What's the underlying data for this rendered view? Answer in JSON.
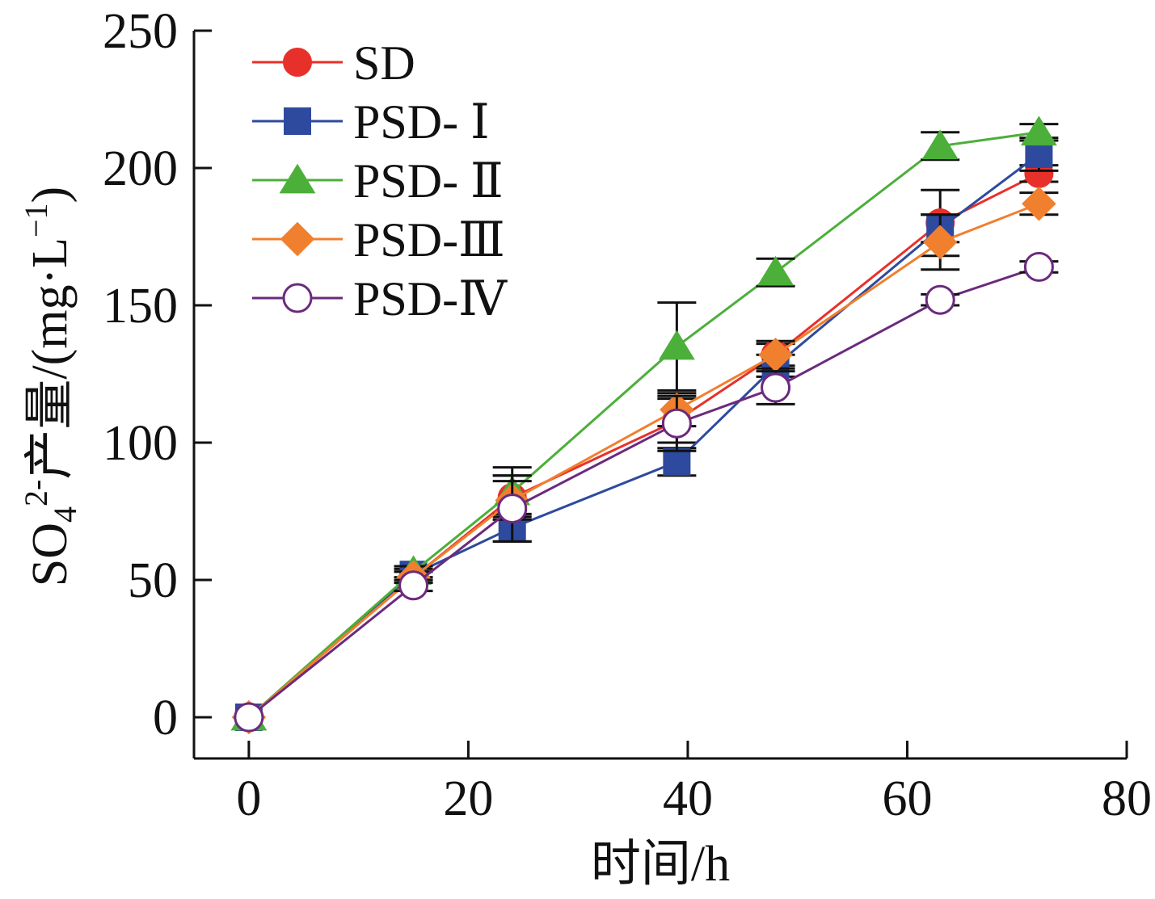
{
  "chart_data": {
    "type": "line",
    "xlabel": "时间/h",
    "ylabel_parts": {
      "base": "SO",
      "sub": "4",
      "sup": "2-",
      "rest": "产量/(mg·L",
      "sup2": "−1",
      "close": ")"
    },
    "xlim": [
      -5,
      80
    ],
    "ylim": [
      -15,
      250
    ],
    "xticks": [
      0,
      20,
      40,
      60,
      80
    ],
    "yticks": [
      0,
      50,
      100,
      150,
      200,
      250
    ],
    "grid": false,
    "legend_position": "top-left",
    "series": [
      {
        "name": "SD",
        "color": "#e8302a",
        "marker": "circle",
        "x": [
          0,
          15,
          24,
          39,
          48,
          63,
          72
        ],
        "y": [
          0,
          51,
          80,
          108,
          132,
          180,
          198
        ],
        "err": [
          0,
          2,
          8,
          8,
          4,
          12,
          3
        ]
      },
      {
        "name": "PSD- Ⅰ",
        "color": "#2e4a9e",
        "marker": "square",
        "x": [
          0,
          15,
          24,
          39,
          48,
          63,
          72
        ],
        "y": [
          0,
          52,
          69,
          93,
          128,
          178,
          205
        ],
        "err": [
          0,
          2,
          5,
          5,
          4,
          5,
          6
        ]
      },
      {
        "name": "PSD- Ⅱ",
        "color": "#4caf3a",
        "marker": "triangle",
        "x": [
          0,
          15,
          24,
          39,
          48,
          63,
          72
        ],
        "y": [
          0,
          53,
          82,
          135,
          162,
          208,
          213
        ],
        "err": [
          0,
          2,
          9,
          16,
          5,
          5,
          3
        ]
      },
      {
        "name": "PSD-Ⅲ",
        "color": "#f07f2e",
        "marker": "diamond",
        "x": [
          0,
          15,
          24,
          39,
          48,
          63,
          72
        ],
        "y": [
          0,
          51,
          79,
          112,
          132,
          173,
          187
        ],
        "err": [
          0,
          2,
          7,
          6,
          5,
          10,
          4
        ]
      },
      {
        "name": "PSD-Ⅳ",
        "color": "#6b2a7d",
        "marker": "open-circle",
        "x": [
          0,
          15,
          24,
          39,
          48,
          63,
          72
        ],
        "y": [
          0,
          48,
          76,
          107,
          120,
          152,
          164
        ],
        "err": [
          0,
          2,
          12,
          10,
          6,
          2,
          2
        ]
      }
    ]
  }
}
